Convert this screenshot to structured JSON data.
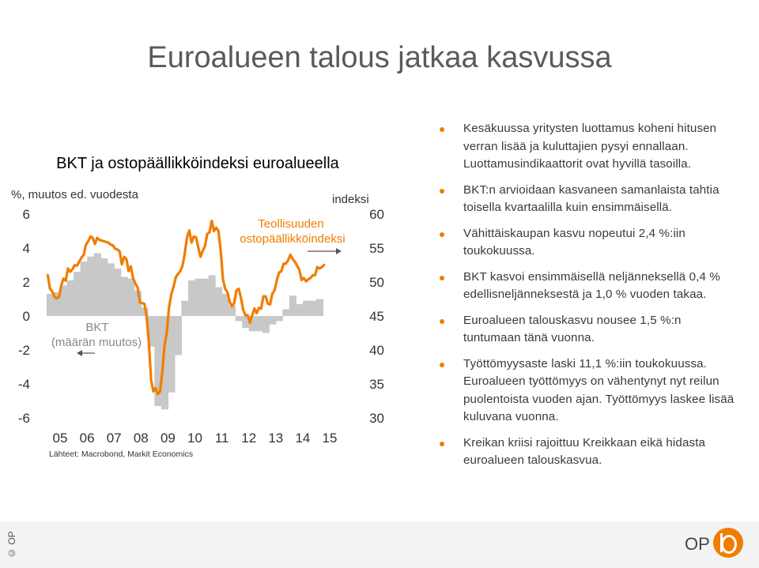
{
  "slide": {
    "title": "Euroalueen talous jatkaa kasvussa"
  },
  "chart_data": {
    "type": "bar+line",
    "title": "BKT ja ostopäällikköindeksi euroalueella",
    "left_axis_label": "%, muutos ed. vuodesta",
    "right_axis_label": "indeksi",
    "left_ylim": [
      -6,
      6
    ],
    "left_ticks": [
      "6",
      "4",
      "2",
      "0",
      "-2",
      "-4",
      "-6"
    ],
    "right_ylim": [
      30,
      60
    ],
    "right_ticks": [
      "60",
      "55",
      "50",
      "45",
      "40",
      "35",
      "30"
    ],
    "x_ticks": [
      "05",
      "06",
      "07",
      "08",
      "09",
      "10",
      "11",
      "12",
      "13",
      "14",
      "15"
    ],
    "source": "Lähteet: Macrobond, Markit Economics",
    "bar_series": {
      "name": "BKT (määrän muutos)",
      "name_line1": "BKT",
      "name_line2": "(määrän muutos)",
      "color": "#c8c8c8",
      "quarters": [
        "2005Q1",
        "2005Q2",
        "2005Q3",
        "2005Q4",
        "2006Q1",
        "2006Q2",
        "2006Q3",
        "2006Q4",
        "2007Q1",
        "2007Q2",
        "2007Q3",
        "2007Q4",
        "2008Q1",
        "2008Q2",
        "2008Q3",
        "2008Q4",
        "2009Q1",
        "2009Q2",
        "2009Q3",
        "2009Q4",
        "2010Q1",
        "2010Q2",
        "2010Q3",
        "2010Q4",
        "2011Q1",
        "2011Q2",
        "2011Q3",
        "2011Q4",
        "2012Q1",
        "2012Q2",
        "2012Q3",
        "2012Q4",
        "2013Q1",
        "2013Q2",
        "2013Q3",
        "2013Q4",
        "2014Q1",
        "2014Q2",
        "2014Q3",
        "2014Q4",
        "2015Q1"
      ],
      "values": [
        1.3,
        1.4,
        1.8,
        2.1,
        2.6,
        3.2,
        3.5,
        3.7,
        3.4,
        3.1,
        2.8,
        2.3,
        2.2,
        1.5,
        0.5,
        -1.8,
        -5.3,
        -5.5,
        -4.5,
        -2.3,
        0.9,
        2.1,
        2.2,
        2.2,
        2.4,
        1.7,
        1.3,
        0.6,
        -0.3,
        -0.7,
        -0.9,
        -0.9,
        -1.0,
        -0.5,
        -0.3,
        0.4,
        1.2,
        0.7,
        0.9,
        0.9,
        1.0
      ]
    },
    "line_series": {
      "name": "Teollisuuden ostopäällikköindeksi",
      "name_line1": "Teollisuuden",
      "name_line2": "ostopäällikköindeksi",
      "color": "#f07d00",
      "months_start": "2005-01",
      "values": [
        51.0,
        49.0,
        48.6,
        47.8,
        47.6,
        47.8,
        49.5,
        50.5,
        50.2,
        52.0,
        51.5,
        51.9,
        52.5,
        52.4,
        53.0,
        53.6,
        54.0,
        55.5,
        56.0,
        56.7,
        56.5,
        55.6,
        56.5,
        56.2,
        56.1,
        56.0,
        55.9,
        55.8,
        55.5,
        55.4,
        54.9,
        54.8,
        54.5,
        52.6,
        53.7,
        53.4,
        51.6,
        52.3,
        50.5,
        49.8,
        49.2,
        47.0,
        46.9,
        46.8,
        45.0,
        41.1,
        35.6,
        33.9,
        34.4,
        33.5,
        33.9,
        36.8,
        40.7,
        42.6,
        46.3,
        48.2,
        49.3,
        50.7,
        51.2,
        51.6,
        52.4,
        54.2,
        56.6,
        57.6,
        55.8,
        56.7,
        56.6,
        55.1,
        53.7,
        54.6,
        55.3,
        57.1,
        57.3,
        59.0,
        57.5,
        58.0,
        57.5,
        54.6,
        50.4,
        49.0,
        48.5,
        47.1,
        46.4,
        46.9,
        48.8,
        49.0,
        47.7,
        45.9,
        45.1,
        45.1,
        44.0,
        45.1,
        46.1,
        45.4,
        46.2,
        46.1,
        47.9,
        47.9,
        46.8,
        46.7,
        48.3,
        48.8,
        50.3,
        51.4,
        51.6,
        52.7,
        52.7,
        53.2,
        54.0,
        53.4,
        53.0,
        52.4,
        51.8,
        50.3,
        50.6,
        50.1,
        50.4,
        50.6,
        51.0,
        51.0,
        52.2,
        52.0,
        52.2,
        52.5
      ]
    }
  },
  "bullets": [
    "Kesäkuussa yritysten luottamus koheni hitusen verran lisää ja kuluttajien pysyi ennallaan. Luottamusindikaattorit ovat hyvillä tasoilla.",
    "BKT:n arvioidaan kasvaneen samanlaista tahtia toisella kvartaalilla kuin ensimmäisellä.",
    "Vähittäiskaupan kasvu nopeutui 2,4 %:iin toukokuussa.",
    "BKT kasvoi ensimmäisellä neljänneksellä 0,4 % edellisneljänneksestä ja 1,0 % vuoden takaa.",
    "Euroalueen talouskasvu nousee 1,5 %:n tuntumaan tänä vuonna.",
    "Työttömyysaste laski 11,1 %:iin toukokuussa. Euroalueen työttömyys on vähentynyt nyt reilun puolentoista vuoden ajan. Työttömyys laskee lisää kuluvana vuonna.",
    "Kreikan kriisi rajoittuu Kreikkaan eikä hidasta euroalueen talouskasvua."
  ],
  "footer": {
    "copyright": "© OP",
    "logo_text": "OP",
    "accent_color": "#f07d00",
    "background": "#f3f3f3"
  }
}
